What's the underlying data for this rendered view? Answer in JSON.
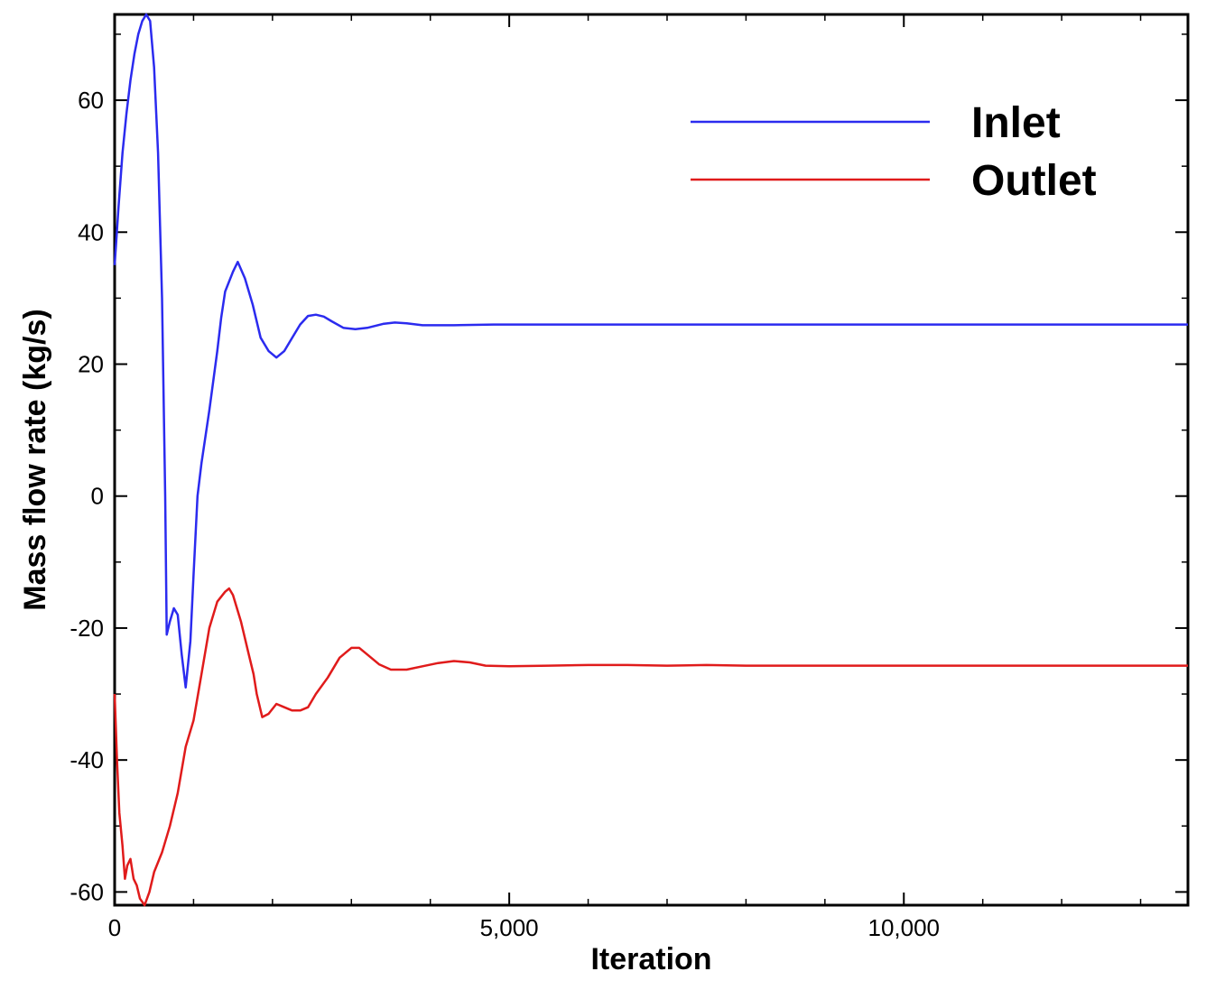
{
  "chart_data": {
    "type": "line",
    "title": "",
    "xlabel": "Iteration",
    "ylabel": "Mass flow rate (kg/s)",
    "xlim": [
      0,
      13600
    ],
    "ylim": [
      -62,
      73
    ],
    "x_ticks": [
      {
        "value": 0,
        "label": "0"
      },
      {
        "value": 5000,
        "label": "5,000"
      },
      {
        "value": 10000,
        "label": "10,000"
      }
    ],
    "x_minor_step": 1000,
    "y_ticks": [
      {
        "value": -60,
        "label": "-60"
      },
      {
        "value": -40,
        "label": "-40"
      },
      {
        "value": -20,
        "label": "-20"
      },
      {
        "value": 0,
        "label": "0"
      },
      {
        "value": 20,
        "label": "20"
      },
      {
        "value": 40,
        "label": "40"
      },
      {
        "value": 60,
        "label": "60"
      }
    ],
    "grid": false,
    "legend_position": "top-right",
    "series": [
      {
        "name": "Inlet",
        "color": "#2b2bef",
        "points": [
          [
            0,
            35
          ],
          [
            50,
            44
          ],
          [
            100,
            52
          ],
          [
            150,
            58
          ],
          [
            200,
            63
          ],
          [
            250,
            67
          ],
          [
            300,
            70
          ],
          [
            350,
            72
          ],
          [
            400,
            73
          ],
          [
            450,
            72
          ],
          [
            500,
            65
          ],
          [
            550,
            52
          ],
          [
            600,
            30
          ],
          [
            640,
            0
          ],
          [
            660,
            -21
          ],
          [
            700,
            -19
          ],
          [
            750,
            -17
          ],
          [
            800,
            -18
          ],
          [
            850,
            -24
          ],
          [
            900,
            -29
          ],
          [
            960,
            -22
          ],
          [
            1000,
            -12
          ],
          [
            1050,
            0
          ],
          [
            1100,
            5
          ],
          [
            1200,
            13
          ],
          [
            1300,
            22
          ],
          [
            1350,
            27
          ],
          [
            1400,
            31
          ],
          [
            1500,
            34
          ],
          [
            1560,
            35.5
          ],
          [
            1650,
            33
          ],
          [
            1750,
            29
          ],
          [
            1850,
            24
          ],
          [
            1950,
            22
          ],
          [
            2050,
            21
          ],
          [
            2150,
            22
          ],
          [
            2250,
            24
          ],
          [
            2350,
            26
          ],
          [
            2450,
            27.3
          ],
          [
            2550,
            27.5
          ],
          [
            2650,
            27.2
          ],
          [
            2750,
            26.5
          ],
          [
            2900,
            25.5
          ],
          [
            3050,
            25.3
          ],
          [
            3200,
            25.5
          ],
          [
            3400,
            26.1
          ],
          [
            3550,
            26.3
          ],
          [
            3700,
            26.2
          ],
          [
            3900,
            25.9
          ],
          [
            4100,
            25.9
          ],
          [
            4300,
            25.9
          ],
          [
            4800,
            26
          ],
          [
            13600,
            26
          ]
        ]
      },
      {
        "name": "Outlet",
        "color": "#e01b1b",
        "points": [
          [
            0,
            -30
          ],
          [
            30,
            -40
          ],
          [
            60,
            -48
          ],
          [
            100,
            -53
          ],
          [
            130,
            -58
          ],
          [
            160,
            -56
          ],
          [
            200,
            -55
          ],
          [
            240,
            -58
          ],
          [
            280,
            -59
          ],
          [
            320,
            -61
          ],
          [
            380,
            -62
          ],
          [
            440,
            -60
          ],
          [
            500,
            -57
          ],
          [
            600,
            -54
          ],
          [
            700,
            -50
          ],
          [
            800,
            -45
          ],
          [
            900,
            -38
          ],
          [
            1000,
            -34
          ],
          [
            1100,
            -27
          ],
          [
            1200,
            -20
          ],
          [
            1300,
            -16
          ],
          [
            1400,
            -14.5
          ],
          [
            1450,
            -14
          ],
          [
            1500,
            -15
          ],
          [
            1600,
            -19
          ],
          [
            1700,
            -24
          ],
          [
            1760,
            -27
          ],
          [
            1800,
            -30
          ],
          [
            1870,
            -33.5
          ],
          [
            1950,
            -33
          ],
          [
            2050,
            -31.5
          ],
          [
            2150,
            -32
          ],
          [
            2250,
            -32.5
          ],
          [
            2350,
            -32.5
          ],
          [
            2450,
            -32
          ],
          [
            2550,
            -30
          ],
          [
            2700,
            -27.5
          ],
          [
            2850,
            -24.5
          ],
          [
            3000,
            -23
          ],
          [
            3100,
            -23
          ],
          [
            3200,
            -24
          ],
          [
            3350,
            -25.5
          ],
          [
            3500,
            -26.3
          ],
          [
            3700,
            -26.3
          ],
          [
            3900,
            -25.8
          ],
          [
            4100,
            -25.3
          ],
          [
            4300,
            -25
          ],
          [
            4500,
            -25.2
          ],
          [
            4700,
            -25.7
          ],
          [
            5000,
            -25.8
          ],
          [
            5500,
            -25.7
          ],
          [
            6000,
            -25.6
          ],
          [
            6500,
            -25.6
          ],
          [
            7000,
            -25.7
          ],
          [
            7500,
            -25.6
          ],
          [
            8000,
            -25.7
          ],
          [
            13600,
            -25.7
          ]
        ]
      }
    ]
  }
}
